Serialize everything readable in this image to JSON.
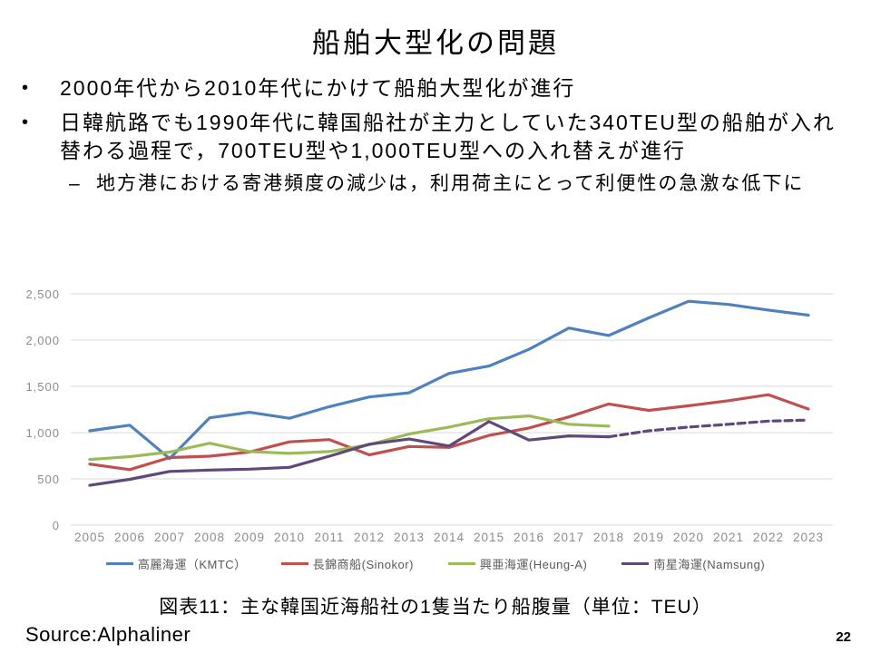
{
  "slide": {
    "title": "船舶大型化の問題",
    "bullets": [
      {
        "marker": "•",
        "text": "2000年代から2010年代にかけて船舶大型化が進行"
      },
      {
        "marker": "•",
        "text": "日韓航路でも1990年代に韓国船社が主力としていた340TEU型の船舶が入れ替わる過程で，700TEU型や1,000TEU型への入れ替えが進行"
      }
    ],
    "sub_bullet": {
      "marker": "–",
      "text": "地方港における寄港頻度の減少は，利用荷主にとって利便性の急激な低下に"
    },
    "caption": "図表11：主な韓国近海船社の1隻当たり船腹量（単位：TEU）",
    "source": "Source:Alphaliner",
    "page_number": "22"
  },
  "chart_data": {
    "type": "line",
    "title": "",
    "xlabel": "",
    "ylabel": "",
    "ylim": [
      0,
      2500
    ],
    "ytick_step": 500,
    "yticks": [
      "0",
      "500",
      "1,000",
      "1,500",
      "2,000",
      "2,500"
    ],
    "grid": true,
    "legend_position": "bottom",
    "x": [
      "2005",
      "2006",
      "2007",
      "2008",
      "2009",
      "2010",
      "2011",
      "2012",
      "2013",
      "2014",
      "2015",
      "2016",
      "2017",
      "2018",
      "2019",
      "2020",
      "2021",
      "2022",
      "2023"
    ],
    "series": [
      {
        "key": "kmtc",
        "name": "高麗海運（KMTC）",
        "color": "#4F81BD",
        "values": [
          1020,
          1080,
          720,
          1160,
          1220,
          1155,
          1280,
          1385,
          1430,
          1640,
          1720,
          1900,
          2130,
          2050,
          2240,
          2420,
          2385,
          2325,
          2270
        ]
      },
      {
        "key": "sinokor",
        "name": "長錦商船(Sinokor)",
        "color": "#C0504D",
        "values": [
          660,
          600,
          730,
          745,
          790,
          900,
          925,
          760,
          850,
          840,
          970,
          1050,
          1170,
          1310,
          1240,
          1290,
          1345,
          1410,
          1255
        ]
      },
      {
        "key": "heung-a",
        "name": "興亜海運(Heung-A)",
        "color": "#9BBB59",
        "values": [
          710,
          740,
          790,
          885,
          795,
          775,
          795,
          870,
          985,
          1060,
          1150,
          1180,
          1090,
          1070,
          null,
          null,
          null,
          null,
          null
        ]
      },
      {
        "key": "namsung",
        "name": "南星海運(Namsung)",
        "color": "#5F497A",
        "values": [
          430,
          495,
          580,
          595,
          605,
          625,
          745,
          875,
          930,
          855,
          1120,
          920,
          965,
          955,
          1020,
          1060,
          1090,
          1125,
          1135
        ],
        "dashed_from_index": 13
      }
    ],
    "colors": {
      "gridline": "#D9D9D9",
      "axis_label": "#8C8C8C"
    }
  }
}
